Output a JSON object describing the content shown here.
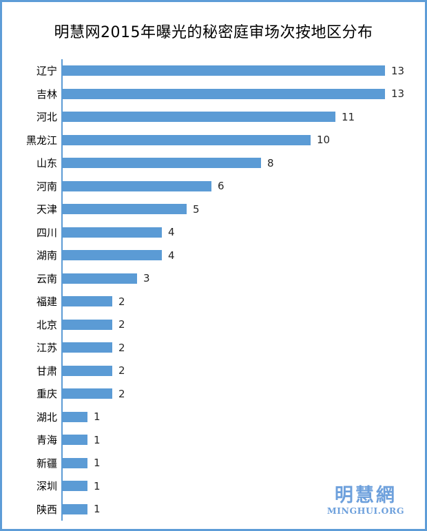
{
  "title": "明慧网2015年曝光的秘密庭审场次按地区分布",
  "watermark": {
    "cjk": "明慧網",
    "latin": "MINGHUI.ORG"
  },
  "colors": {
    "bar": "#5B9BD5",
    "frame_border": "#5D9CD7",
    "watermark": "#6DA0DC",
    "value_text": "#262626",
    "category_text": "#000000"
  },
  "chart_data": {
    "type": "bar",
    "orientation": "horizontal",
    "title": "明慧网2015年曝光的秘密庭审场次按地区分布",
    "categories": [
      "辽宁",
      "吉林",
      "河北",
      "黑龙江",
      "山东",
      "河南",
      "天津",
      "四川",
      "湖南",
      "云南",
      "福建",
      "北京",
      "江苏",
      "甘肃",
      "重庆",
      "湖北",
      "青海",
      "新疆",
      "深圳",
      "陕西"
    ],
    "values": [
      13,
      13,
      11,
      10,
      8,
      6,
      5,
      4,
      4,
      3,
      2,
      2,
      2,
      2,
      2,
      1,
      1,
      1,
      1,
      1
    ],
    "xlabel": "",
    "ylabel": "",
    "xlim": [
      0,
      13
    ],
    "grid": false,
    "legend": false,
    "data_labels": true,
    "axis_ticks_visible": false
  }
}
